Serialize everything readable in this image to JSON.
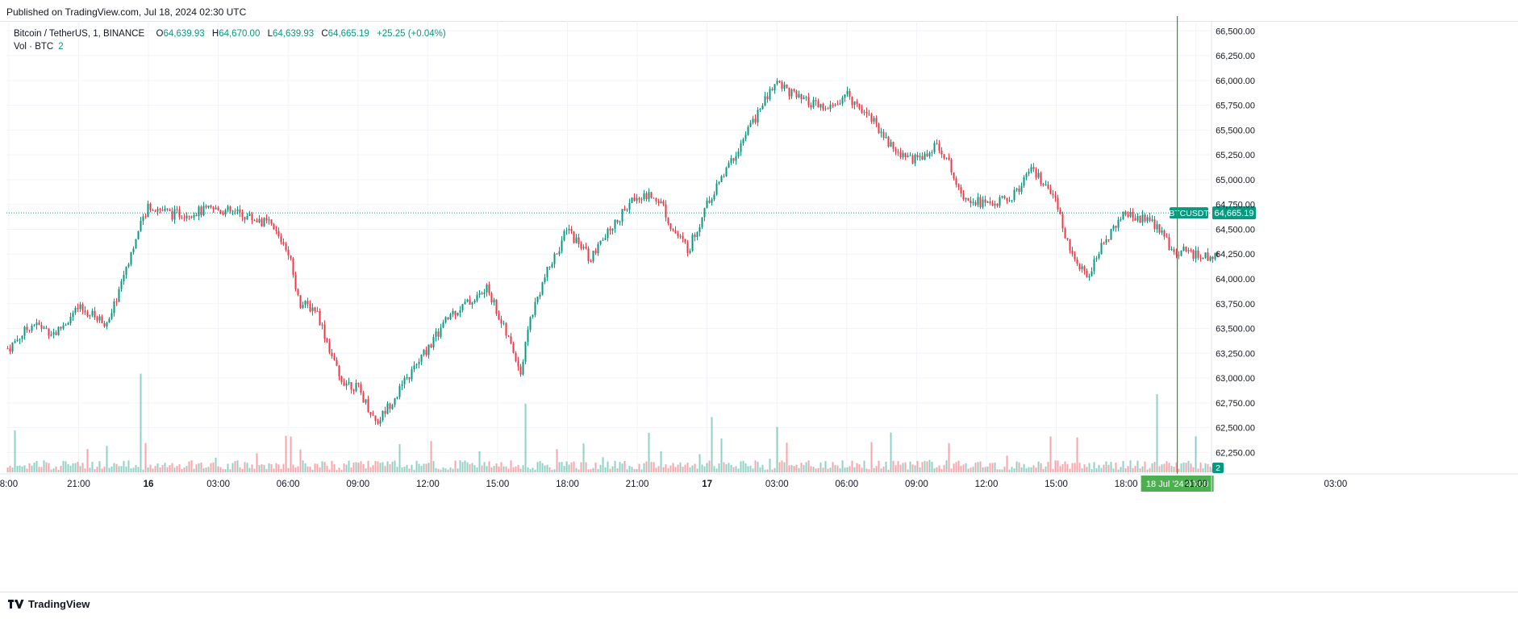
{
  "header": {
    "published": "Published on TradingView.com, Jul 18, 2024 02:30 UTC"
  },
  "legend": {
    "symbol": "Bitcoin / TetherUS, 1, BINANCE",
    "open_label": "O",
    "open": "64,639.93",
    "high_label": "H",
    "high": "64,670.00",
    "low_label": "L",
    "low": "64,639.93",
    "close_label": "C",
    "close": "64,665.19",
    "change": "+25.25 (+0.04%)",
    "vol_label": "Vol · BTC",
    "vol_value": "2"
  },
  "footer": {
    "brand": "TradingView"
  },
  "colors": {
    "up": "#089981",
    "down": "#f23645",
    "crosshair": "#1fa51f",
    "grid": "#f0f3fa"
  },
  "chart_data": {
    "type": "candlestick",
    "symbol": "BTCUSDT",
    "interval": "1",
    "exchange": "BINANCE",
    "ylim": [
      62050,
      66600
    ],
    "y_ticks": [
      {
        "value": 66500,
        "label": "66,500.00"
      },
      {
        "value": 66250,
        "label": "66,250.00"
      },
      {
        "value": 66000,
        "label": "66,000.00"
      },
      {
        "value": 65750,
        "label": "65,750.00"
      },
      {
        "value": 65500,
        "label": "65,500.00"
      },
      {
        "value": 65250,
        "label": "65,250.00"
      },
      {
        "value": 65000,
        "label": "65,000.00"
      },
      {
        "value": 64750,
        "label": "64,750.00"
      },
      {
        "value": 64500,
        "label": "64,500.00"
      },
      {
        "value": 64250,
        "label": "64,250.00"
      },
      {
        "value": 64000,
        "label": "64,000.00"
      },
      {
        "value": 63750,
        "label": "63,750.00"
      },
      {
        "value": 63500,
        "label": "63,500.00"
      },
      {
        "value": 63250,
        "label": "63,250.00"
      },
      {
        "value": 63000,
        "label": "63,000.00"
      },
      {
        "value": 62750,
        "label": "62,750.00"
      },
      {
        "value": 62500,
        "label": "62,500.00"
      },
      {
        "value": 62250,
        "label": "62,250.00"
      }
    ],
    "x_range_hours": [
      -0.1,
      51.6
    ],
    "x_ticks": [
      {
        "hours": 0,
        "label": "8:00",
        "bold": false
      },
      {
        "hours": 3,
        "label": "21:00",
        "bold": false
      },
      {
        "hours": 6,
        "label": "16",
        "bold": true
      },
      {
        "hours": 9,
        "label": "03:00",
        "bold": false
      },
      {
        "hours": 12,
        "label": "06:00",
        "bold": false
      },
      {
        "hours": 15,
        "label": "09:00",
        "bold": false
      },
      {
        "hours": 18,
        "label": "12:00",
        "bold": false
      },
      {
        "hours": 21,
        "label": "15:00",
        "bold": false
      },
      {
        "hours": 24,
        "label": "18:00",
        "bold": false
      },
      {
        "hours": 27,
        "label": "21:00",
        "bold": false
      },
      {
        "hours": 30,
        "label": "17",
        "bold": true
      },
      {
        "hours": 33,
        "label": "03:00",
        "bold": false
      },
      {
        "hours": 36,
        "label": "06:00",
        "bold": false
      },
      {
        "hours": 39,
        "label": "09:00",
        "bold": false
      },
      {
        "hours": 42,
        "label": "12:00",
        "bold": false
      },
      {
        "hours": 45,
        "label": "15:00",
        "bold": false
      },
      {
        "hours": 48,
        "label": "18:00",
        "bold": false
      },
      {
        "hours": 51,
        "label": "21:00",
        "bold": false
      },
      {
        "hours": 57,
        "label": "03:00",
        "bold": false
      }
    ],
    "price_path_hours": [
      0,
      1.0,
      2.0,
      3.0,
      4.3,
      5.0,
      6.0,
      7.0,
      9.0,
      10.0,
      11.2,
      12.0,
      12.5,
      13.2,
      14.2,
      15.0,
      15.8,
      17.0,
      18.0,
      19.0,
      20.0,
      20.6,
      21.0,
      21.8,
      22.0,
      22.4,
      23.0,
      24.0,
      25.0,
      26.0,
      27.0,
      28.0,
      28.5,
      29.2,
      30.0,
      31.2,
      32.0,
      33.0,
      34.0,
      35.2,
      36.0,
      37.0,
      38.0,
      39.0,
      40.0,
      41.0,
      42.0,
      43.0,
      44.0,
      45.0,
      45.6,
      46.3,
      46.8,
      47.5,
      48.0,
      49.0,
      50.0,
      51.0,
      52.0
    ],
    "price_path_values": [
      63300,
      63550,
      63450,
      63700,
      63550,
      64100,
      64750,
      64650,
      64700,
      64650,
      64550,
      64300,
      63750,
      63700,
      63000,
      62900,
      62550,
      62950,
      63300,
      63650,
      63800,
      63900,
      63650,
      63200,
      63050,
      63600,
      64000,
      64500,
      64200,
      64550,
      64850,
      64800,
      64500,
      64300,
      64750,
      65250,
      65600,
      66000,
      65800,
      65700,
      65850,
      65650,
      65300,
      65200,
      65350,
      64850,
      64750,
      64800,
      65100,
      64750,
      64300,
      64000,
      64250,
      64550,
      64650,
      64600,
      64300,
      64250,
      64200
    ],
    "crosshair": {
      "date_label": "18 Jul '24  00:00",
      "hours_from_start": 50.2
    },
    "last_price": {
      "label": "BTCUSDT",
      "value": 64665.19,
      "value_label": "64,665.19"
    },
    "volume": {
      "last_label": "2"
    }
  }
}
